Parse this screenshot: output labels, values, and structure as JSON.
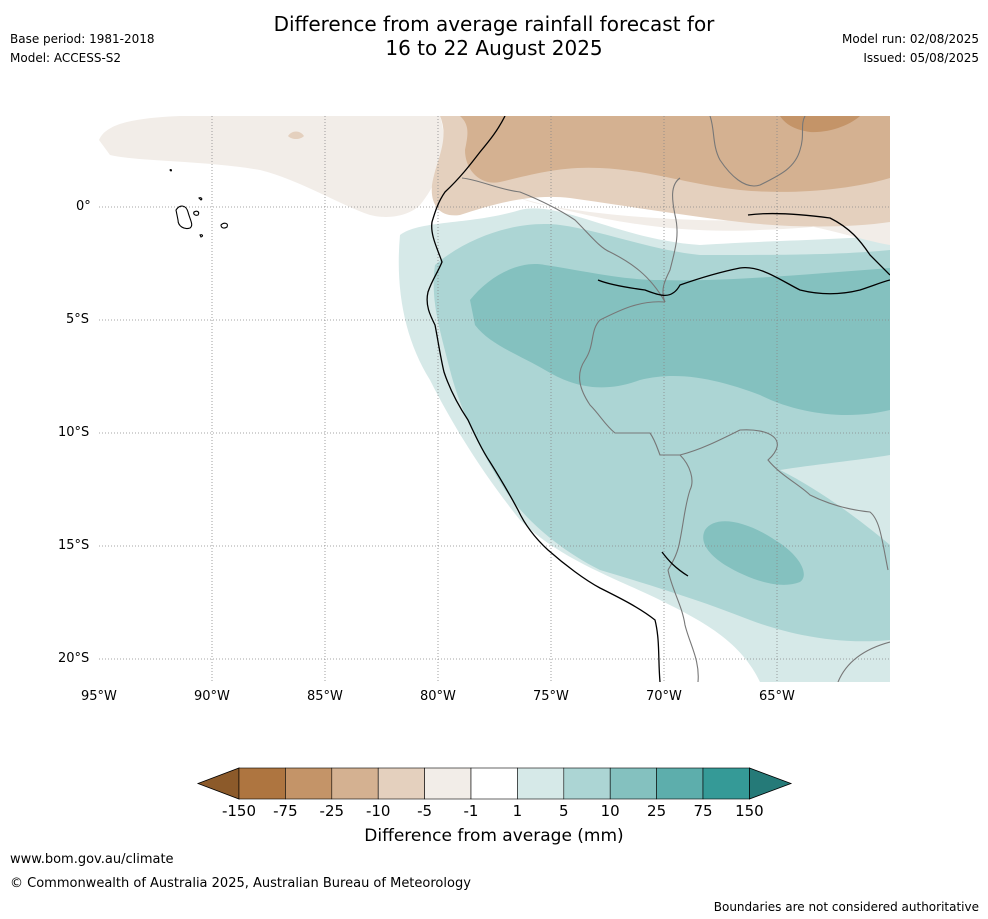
{
  "title_line1": "Difference from average rainfall forecast for",
  "title_line2": "16 to 22 August 2025",
  "meta_left": {
    "base_period": "Base period: 1981-2018",
    "model": "Model: ACCESS-S2"
  },
  "meta_right": {
    "model_run": "Model run: 02/08/2025",
    "issued": "Issued: 05/08/2025"
  },
  "map": {
    "lat_labels": [
      "0°",
      "5°S",
      "10°S",
      "15°S",
      "20°S"
    ],
    "lon_labels": [
      "95°W",
      "90°W",
      "85°W",
      "80°W",
      "75°W",
      "70°W",
      "65°W"
    ],
    "coast_color": "#000000",
    "border_color": "#777777",
    "grid_color": "#888888"
  },
  "colorbar": {
    "title": "Difference from average (mm)",
    "labels": [
      "-150",
      "-75",
      "-25",
      "-10",
      "-5",
      "-1",
      "1",
      "5",
      "10",
      "25",
      "75",
      "150"
    ],
    "colors": [
      "#8c5a2a",
      "#ae7540",
      "#c49468",
      "#d4b191",
      "#e4d0be",
      "#f2ede8",
      "#ffffff",
      "#d6e9e8",
      "#acd5d4",
      "#84c1bf",
      "#5daeac",
      "#359a97",
      "#257a78"
    ]
  },
  "footer": {
    "website": "www.bom.gov.au/climate",
    "copyright": "© Commonwealth of Australia 2025, Australian Bureau of Meteorology",
    "disclaimer": "Boundaries are not considered authoritative"
  }
}
